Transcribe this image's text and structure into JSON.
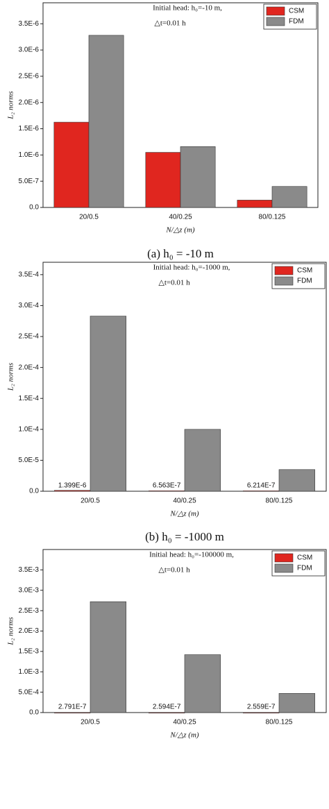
{
  "chart_data": [
    {
      "type": "bar",
      "title": [
        "Initial head: h₀=-10 m,",
        "△t=0.01 h"
      ],
      "caption": "(a) h₀ = -10 m",
      "categories": [
        "20/0.5",
        "40/0.25",
        "80/0.125"
      ],
      "x_label": "N/△z (m)",
      "y_label": "L₂ norms",
      "series": [
        {
          "name": "CSM",
          "color": "#e0261f",
          "values": [
            1.625e-06,
            1.05e-06,
            1.4e-07
          ]
        },
        {
          "name": "FDM",
          "color": "#8a8a8a",
          "values": [
            3.28e-06,
            1.16e-06,
            4e-07
          ]
        }
      ],
      "ylim": [
        0,
        3.9e-06
      ],
      "yticks": [
        {
          "value": 0,
          "label": "0.0"
        },
        {
          "value": 5e-07,
          "label": "5.0E-7"
        },
        {
          "value": 1e-06,
          "label": "1.0E-6"
        },
        {
          "value": 1.5e-06,
          "label": "1.5E-6"
        },
        {
          "value": 2e-06,
          "label": "2.0E-6"
        },
        {
          "value": 2.5e-06,
          "label": "2.5E-6"
        },
        {
          "value": 3e-06,
          "label": "3.0E-6"
        },
        {
          "value": 3.5e-06,
          "label": "3.5E-6"
        }
      ],
      "legend": "upper right"
    },
    {
      "type": "bar",
      "title": [
        "Initial head: h₀=-1000 m,",
        "△t=0.01 h"
      ],
      "caption": "(b) h₀ = -1000 m",
      "categories": [
        "20/0.5",
        "40/0.25",
        "80/0.125"
      ],
      "x_label": "N/△z (m)",
      "y_label": "L₂ norms",
      "series": [
        {
          "name": "CSM",
          "color": "#e0261f",
          "values": [
            1.399e-06,
            6.563e-07,
            6.214e-07
          ],
          "value_labels": [
            "1.399E-6",
            "6.563E-7",
            "6.214E-7"
          ]
        },
        {
          "name": "FDM",
          "color": "#8a8a8a",
          "values": [
            0.000283,
            0.0001,
            3.5e-05
          ]
        }
      ],
      "ylim": [
        0,
        0.00037
      ],
      "yticks": [
        {
          "value": 0,
          "label": "0.0"
        },
        {
          "value": 5e-05,
          "label": "5.0E-5"
        },
        {
          "value": 0.0001,
          "label": "1.0E-4"
        },
        {
          "value": 0.00015,
          "label": "1.5E-4"
        },
        {
          "value": 0.0002,
          "label": "2.0E-4"
        },
        {
          "value": 0.00025,
          "label": "2.5E-4"
        },
        {
          "value": 0.0003,
          "label": "3.0E-4"
        },
        {
          "value": 0.00035,
          "label": "3.5E-4"
        }
      ],
      "legend": "upper right"
    },
    {
      "type": "bar",
      "title": [
        "Initial head: h₀=-100000 m,",
        "△t=0.01 h"
      ],
      "categories": [
        "20/0.5",
        "40/0.25",
        "80/0.125"
      ],
      "x_label": "N/△z (m)",
      "y_label": "L₂ norms",
      "series": [
        {
          "name": "CSM",
          "color": "#e0261f",
          "values": [
            2.791e-07,
            2.594e-07,
            2.559e-07
          ],
          "value_labels": [
            "2.791E-7",
            "2.594E-7",
            "2.559E-7"
          ]
        },
        {
          "name": "FDM",
          "color": "#8a8a8a",
          "values": [
            0.00272,
            0.00142,
            0.00047
          ]
        }
      ],
      "ylim": [
        0,
        0.004
      ],
      "yticks": [
        {
          "value": 0,
          "label": "0.0"
        },
        {
          "value": 0.0005,
          "label": "5.0E-4"
        },
        {
          "value": 0.001,
          "label": "1.0E-3"
        },
        {
          "value": 0.0015,
          "label": "1.5E-3"
        },
        {
          "value": 0.002,
          "label": "2.0E-3"
        },
        {
          "value": 0.0025,
          "label": "2.5E-3"
        },
        {
          "value": 0.003,
          "label": "3.0E-3"
        },
        {
          "value": 0.0035,
          "label": "3.5E-3"
        }
      ],
      "legend": "upper right"
    }
  ]
}
